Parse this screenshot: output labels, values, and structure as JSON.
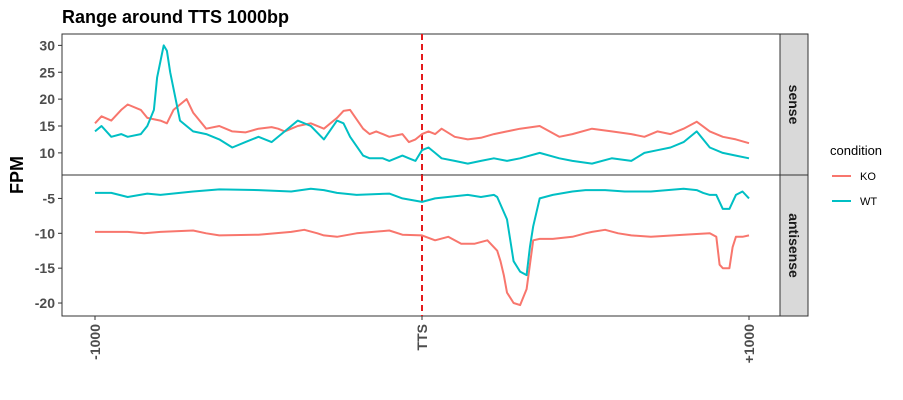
{
  "chart_data": {
    "type": "line",
    "title": "Range around TTS 1000bp",
    "ylabel": "FPM",
    "xlabel": "",
    "x_ticks": [
      {
        "x": -1000,
        "label": "-1000"
      },
      {
        "x": 0,
        "label": "TTS"
      },
      {
        "x": 1000,
        "label": "+1000"
      }
    ],
    "xlim": [
      -1000,
      1000
    ],
    "vline": {
      "x": 0,
      "color": "#e41a1c",
      "style": "dashed"
    },
    "legend": {
      "title": "condition",
      "position": "right",
      "entries": [
        {
          "name": "KO",
          "color": "#F8766D"
        },
        {
          "name": "WT",
          "color": "#00BFC4"
        }
      ]
    },
    "panels": [
      {
        "strip": "sense",
        "ylim": [
          7,
          31
        ],
        "y_ticks": [
          {
            "y": 10,
            "label": "10"
          },
          {
            "y": 15,
            "label": "15"
          },
          {
            "y": 20,
            "label": "20"
          },
          {
            "y": 25,
            "label": "25"
          },
          {
            "y": 30,
            "label": "30"
          }
        ],
        "series": [
          {
            "name": "KO",
            "x": [
              -1000,
              -980,
              -950,
              -920,
              -900,
              -860,
              -840,
              -800,
              -780,
              -760,
              -720,
              -700,
              -660,
              -620,
              -580,
              -540,
              -500,
              -460,
              -440,
              -420,
              -380,
              -340,
              -300,
              -260,
              -240,
              -220,
              -180,
              -160,
              -140,
              -120,
              -100,
              -60,
              -40,
              -20,
              0,
              20,
              40,
              60,
              100,
              140,
              180,
              220,
              260,
              300,
              360,
              420,
              460,
              520,
              580,
              640,
              680,
              720,
              760,
              800,
              840,
              880,
              920,
              960,
              1000
            ],
            "y": [
              15.5,
              16.8,
              16.0,
              18.0,
              19.0,
              18.0,
              16.5,
              16.0,
              15.5,
              18.0,
              20.0,
              17.5,
              14.5,
              15.0,
              14.0,
              13.8,
              14.5,
              14.8,
              14.5,
              14.0,
              15.0,
              15.5,
              14.5,
              16.5,
              17.8,
              18.0,
              14.5,
              13.5,
              14.0,
              13.5,
              13.0,
              13.5,
              12.0,
              12.5,
              13.5,
              14.0,
              13.5,
              14.5,
              13.0,
              12.5,
              12.8,
              13.5,
              14.0,
              14.5,
              15.0,
              13.0,
              13.5,
              14.5,
              14.0,
              13.5,
              13.0,
              14.0,
              13.5,
              14.5,
              15.8,
              14.0,
              13.0,
              12.5,
              11.8
            ]
          },
          {
            "name": "WT",
            "x": [
              -1000,
              -980,
              -950,
              -920,
              -900,
              -860,
              -840,
              -820,
              -810,
              -800,
              -790,
              -780,
              -770,
              -740,
              -700,
              -660,
              -620,
              -580,
              -540,
              -500,
              -460,
              -420,
              -380,
              -340,
              -300,
              -260,
              -240,
              -220,
              -180,
              -160,
              -140,
              -120,
              -100,
              -60,
              -40,
              -20,
              0,
              20,
              40,
              60,
              100,
              140,
              180,
              220,
              260,
              300,
              360,
              420,
              460,
              520,
              580,
              640,
              680,
              720,
              760,
              800,
              840,
              880,
              920,
              960,
              1000
            ],
            "y": [
              14.0,
              15.0,
              13.0,
              13.5,
              13.0,
              13.5,
              15.0,
              18.0,
              24.0,
              27.0,
              30.0,
              29.0,
              25.0,
              16.0,
              14.0,
              13.5,
              12.5,
              11.0,
              12.0,
              13.0,
              12.0,
              14.0,
              16.0,
              15.0,
              12.5,
              16.0,
              15.5,
              13.0,
              9.5,
              9.0,
              9.0,
              9.0,
              8.5,
              9.5,
              9.0,
              8.5,
              10.5,
              11.0,
              10.0,
              9.0,
              8.5,
              8.0,
              8.5,
              9.0,
              8.5,
              9.0,
              10.0,
              9.0,
              8.5,
              8.0,
              9.0,
              8.5,
              10.0,
              10.5,
              11.0,
              12.0,
              14.0,
              11.0,
              10.0,
              9.5,
              9.0
            ]
          }
        ]
      },
      {
        "strip": "antisense",
        "ylim": [
          -21,
          -2.5
        ],
        "y_ticks": [
          {
            "y": -5,
            "label": "-5"
          },
          {
            "y": -10,
            "label": "-10"
          },
          {
            "y": -15,
            "label": "-15"
          },
          {
            "y": -20,
            "label": "-20"
          }
        ],
        "series": [
          {
            "name": "KO",
            "x": [
              -1000,
              -900,
              -850,
              -800,
              -700,
              -660,
              -620,
              -500,
              -400,
              -360,
              -320,
              -300,
              -260,
              -200,
              -100,
              -60,
              0,
              40,
              80,
              120,
              160,
              200,
              230,
              240,
              250,
              260,
              280,
              300,
              320,
              340,
              360,
              400,
              460,
              500,
              520,
              560,
              600,
              640,
              700,
              800,
              880,
              900,
              910,
              920,
              940,
              950,
              960,
              980,
              1000
            ],
            "y": [
              -9.8,
              -9.8,
              -10.0,
              -9.8,
              -9.6,
              -10.0,
              -10.3,
              -10.2,
              -9.8,
              -9.5,
              -10.0,
              -10.3,
              -10.5,
              -10.0,
              -9.6,
              -10.2,
              -10.3,
              -11.0,
              -10.5,
              -11.5,
              -11.5,
              -11.0,
              -12.5,
              -14.0,
              -16.0,
              -18.5,
              -20.0,
              -20.3,
              -18.0,
              -11.0,
              -10.8,
              -10.8,
              -10.5,
              -10.0,
              -9.8,
              -9.5,
              -10.0,
              -10.3,
              -10.5,
              -10.2,
              -10.0,
              -10.5,
              -14.5,
              -15.0,
              -15.0,
              -12.0,
              -10.5,
              -10.5,
              -10.3
            ]
          },
          {
            "name": "WT",
            "x": [
              -1000,
              -950,
              -900,
              -840,
              -800,
              -700,
              -620,
              -500,
              -400,
              -340,
              -300,
              -260,
              -200,
              -100,
              -60,
              0,
              40,
              100,
              140,
              180,
              220,
              230,
              260,
              280,
              300,
              320,
              330,
              340,
              360,
              400,
              460,
              500,
              560,
              620,
              700,
              800,
              840,
              860,
              880,
              900,
              920,
              940,
              960,
              980,
              1000
            ],
            "y": [
              -4.2,
              -4.2,
              -4.8,
              -4.3,
              -4.5,
              -4.0,
              -3.7,
              -3.8,
              -4.0,
              -3.6,
              -3.8,
              -4.2,
              -4.5,
              -4.3,
              -5.0,
              -5.5,
              -5.0,
              -4.7,
              -4.5,
              -4.8,
              -4.5,
              -4.8,
              -8.0,
              -14.0,
              -15.5,
              -16.0,
              -12.0,
              -9.0,
              -5.0,
              -4.5,
              -4.0,
              -3.8,
              -3.8,
              -4.0,
              -4.0,
              -3.6,
              -3.8,
              -4.2,
              -4.5,
              -4.5,
              -6.5,
              -6.5,
              -4.5,
              -4.0,
              -5.0
            ]
          }
        ]
      }
    ]
  }
}
